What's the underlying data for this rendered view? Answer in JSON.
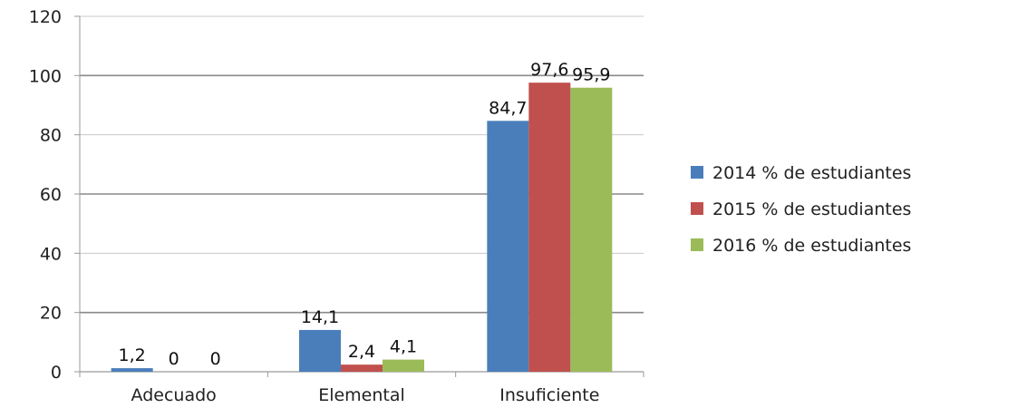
{
  "chart_data": {
    "type": "bar",
    "categories": [
      "Adecuado",
      "Elemental",
      "Insuficiente"
    ],
    "series": [
      {
        "name": "2014 % de estudiantes",
        "color": "#4a7ebb",
        "values": [
          1.2,
          14.1,
          84.7
        ],
        "labels": [
          "1,2",
          "14,1",
          "84,7"
        ]
      },
      {
        "name": "2015 % de estudiantes",
        "color": "#c0504d",
        "values": [
          0,
          2.4,
          97.6
        ],
        "labels": [
          "0",
          "2,4",
          "97,6"
        ]
      },
      {
        "name": "2016 % de estudiantes",
        "color": "#9bbb59",
        "values": [
          0,
          4.1,
          95.9
        ],
        "labels": [
          "0",
          "4,1",
          "95,9"
        ]
      }
    ],
    "ylim": [
      0,
      120
    ],
    "yticks": [
      0,
      20,
      40,
      60,
      80,
      100,
      120
    ],
    "grid": "horizontal",
    "legend": "right",
    "title": "",
    "xlabel": "",
    "ylabel": ""
  }
}
